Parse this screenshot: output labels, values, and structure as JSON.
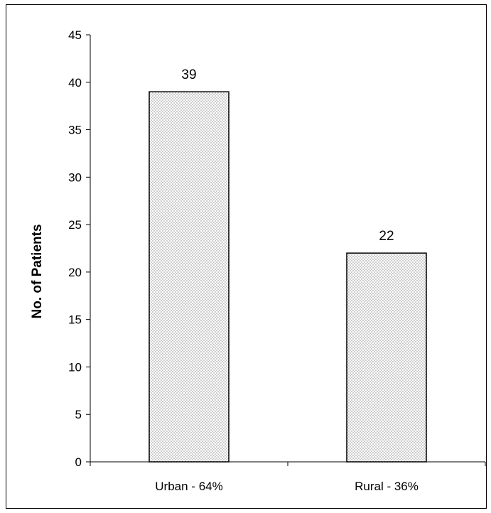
{
  "chart_data": {
    "type": "bar",
    "categories": [
      "Urban - 64%",
      "Rural - 36%"
    ],
    "values": [
      39,
      22
    ],
    "data_labels": [
      "39",
      "22"
    ],
    "title": "",
    "xlabel": "",
    "ylabel": "No. of Patients",
    "ylim": [
      0,
      45
    ],
    "y_ticks": [
      0,
      5,
      10,
      15,
      20,
      25,
      30,
      35,
      40,
      45
    ],
    "grid": false,
    "legend": "none",
    "bar_fill": "dotted pattern",
    "colors": {
      "bar_fill": "#ffffff",
      "bar_dots": "#555555",
      "bar_stroke": "#000000"
    }
  }
}
